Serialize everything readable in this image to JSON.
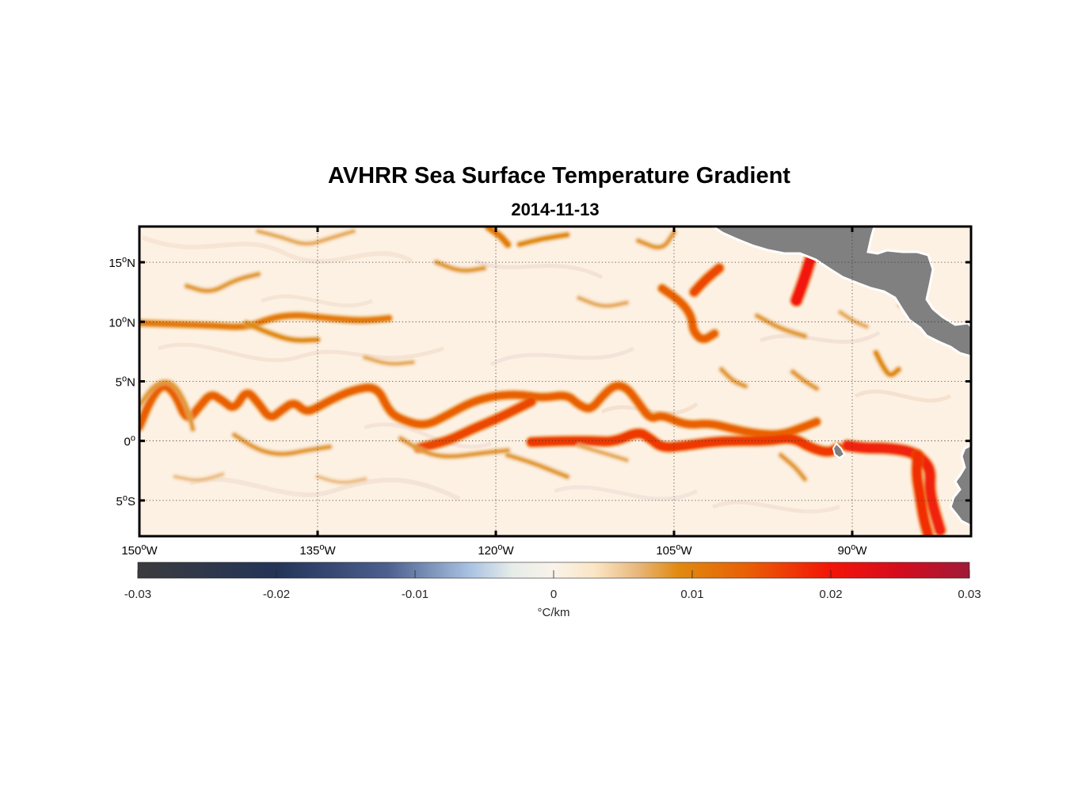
{
  "title": "AVHRR Sea Surface Temperature Gradient",
  "subtitle": "2014-11-13",
  "map": {
    "lon_range": [
      -150,
      -80
    ],
    "lat_range": [
      -8,
      18
    ],
    "lon_ticks": [
      {
        "value": -150,
        "deg": "150",
        "hemi": "W"
      },
      {
        "value": -135,
        "deg": "135",
        "hemi": "W"
      },
      {
        "value": -120,
        "deg": "120",
        "hemi": "W"
      },
      {
        "value": -105,
        "deg": "105",
        "hemi": "W"
      },
      {
        "value": -90,
        "deg": "90",
        "hemi": "W"
      }
    ],
    "lat_ticks": [
      {
        "value": 15,
        "deg": "15",
        "hemi": "N"
      },
      {
        "value": 10,
        "deg": "10",
        "hemi": "N"
      },
      {
        "value": 5,
        "deg": "5",
        "hemi": "N"
      },
      {
        "value": 0,
        "deg": "0",
        "hemi": ""
      },
      {
        "value": -5,
        "deg": "5",
        "hemi": "S"
      }
    ],
    "grid": true,
    "land_color": "#808080",
    "ocean_background": "#fdf1e3",
    "degree_symbol": "o"
  },
  "colorbar": {
    "range": [
      -0.03,
      0.03
    ],
    "ticks": [
      {
        "value": -0.03,
        "label": "-0.03"
      },
      {
        "value": -0.02,
        "label": "-0.02"
      },
      {
        "value": -0.01,
        "label": "-0.01"
      },
      {
        "value": 0,
        "label": "0"
      },
      {
        "value": 0.01,
        "label": "0.01"
      },
      {
        "value": 0.02,
        "label": "0.02"
      },
      {
        "value": 0.03,
        "label": "0.03"
      }
    ],
    "unit": "°C/km",
    "stops": [
      {
        "value": -0.03,
        "color": "#3b3b3d"
      },
      {
        "value": -0.02,
        "color": "#233458"
      },
      {
        "value": -0.012,
        "color": "#4c5f8e"
      },
      {
        "value": -0.006,
        "color": "#a9c3e3"
      },
      {
        "value": -0.003,
        "color": "#e6ece8"
      },
      {
        "value": 0,
        "color": "#f9f3ea"
      },
      {
        "value": 0.003,
        "color": "#fbe5c4"
      },
      {
        "value": 0.006,
        "color": "#e8b87e"
      },
      {
        "value": 0.009,
        "color": "#e08a10"
      },
      {
        "value": 0.014,
        "color": "#e95f05"
      },
      {
        "value": 0.02,
        "color": "#f31407"
      },
      {
        "value": 0.025,
        "color": "#d40c1e"
      },
      {
        "value": 0.03,
        "color": "#a01a38"
      }
    ]
  },
  "fronts": [
    {
      "id": "equatorial-front-main",
      "strength": 0.014,
      "points": [
        [
          -150,
          1.2
        ],
        [
          -149,
          3.6
        ],
        [
          -148,
          4.8
        ],
        [
          -147,
          4.0
        ],
        [
          -146,
          1.6
        ],
        [
          -145,
          2.8
        ],
        [
          -144,
          4.0
        ],
        [
          -143,
          3.4
        ],
        [
          -142,
          2.6
        ],
        [
          -141,
          4.3
        ],
        [
          -140,
          3.2
        ],
        [
          -139,
          1.8
        ],
        [
          -138,
          2.6
        ],
        [
          -137,
          3.3
        ],
        [
          -136,
          2.4
        ],
        [
          -135,
          2.8
        ],
        [
          -134,
          3.4
        ],
        [
          -132,
          4.3
        ],
        [
          -130,
          4.6
        ],
        [
          -129,
          2.5
        ],
        [
          -128,
          1.8
        ],
        [
          -126,
          1.2
        ],
        [
          -124,
          2.2
        ],
        [
          -122,
          3.3
        ],
        [
          -120,
          3.8
        ],
        [
          -118,
          3.9
        ],
        [
          -116,
          3.6
        ],
        [
          -114,
          3.9
        ],
        [
          -113,
          3.0
        ],
        [
          -112,
          2.6
        ],
        [
          -111,
          3.8
        ],
        [
          -110,
          4.7
        ],
        [
          -109,
          4.5
        ],
        [
          -108,
          3.2
        ],
        [
          -107,
          1.8
        ],
        [
          -106,
          2.2
        ],
        [
          -104,
          1.3
        ],
        [
          -102,
          1.5
        ],
        [
          -100,
          1.0
        ],
        [
          -98,
          0.6
        ],
        [
          -96,
          0.5
        ],
        [
          -94,
          1.2
        ],
        [
          -93,
          1.6
        ]
      ]
    },
    {
      "id": "cold-tongue-north-edge",
      "strength": 0.016,
      "points": [
        [
          -126.5,
          -0.6
        ],
        [
          -124,
          0.0
        ],
        [
          -122,
          1.0
        ],
        [
          -120,
          1.8
        ],
        [
          -118,
          2.8
        ],
        [
          -117,
          3.3
        ]
      ]
    },
    {
      "id": "cold-tongue-equator",
      "strength": 0.017,
      "points": [
        [
          -117,
          -0.1
        ],
        [
          -114,
          0.0
        ],
        [
          -112,
          0.0
        ],
        [
          -110,
          -0.1
        ],
        [
          -108,
          0.8
        ],
        [
          -107,
          0.2
        ],
        [
          -106,
          -0.6
        ],
        [
          -104,
          -0.4
        ],
        [
          -102,
          -0.1
        ],
        [
          -100,
          0.0
        ],
        [
          -97,
          0.0
        ],
        [
          -95,
          0.3
        ],
        [
          -93.5,
          -0.6
        ],
        [
          -92,
          -1.0
        ],
        [
          -91.2,
          -0.6
        ]
      ]
    },
    {
      "id": "galapagos-east",
      "strength": 0.019,
      "points": [
        [
          -90.4,
          -0.4
        ],
        [
          -89,
          -0.6
        ],
        [
          -87,
          -0.6
        ],
        [
          -85,
          -0.9
        ],
        [
          -84,
          -1.6
        ],
        [
          -83.4,
          -2.5
        ],
        [
          -83.5,
          -4.0
        ],
        [
          -83.2,
          -5.5
        ],
        [
          -82.6,
          -7.5
        ]
      ]
    },
    {
      "id": "peru-upwelling",
      "strength": 0.018,
      "points": [
        [
          -84.5,
          -1.2
        ],
        [
          -84.6,
          -2.8
        ],
        [
          -84.3,
          -4.6
        ],
        [
          -84.0,
          -6.5
        ],
        [
          -83.6,
          -7.9
        ]
      ]
    },
    {
      "id": "panama-jet",
      "strength": 0.02,
      "points": [
        [
          -94.7,
          11.8
        ],
        [
          -94.1,
          13.4
        ],
        [
          -93.6,
          15.0
        ],
        [
          -93.3,
          15.9
        ]
      ]
    },
    {
      "id": "papagayo-eddy",
      "strength": 0.014,
      "points": [
        [
          -106,
          12.8
        ],
        [
          -104.3,
          11.6
        ],
        [
          -103.5,
          10.4
        ],
        [
          -103.4,
          9.2
        ],
        [
          -102.6,
          8.4
        ],
        [
          -101.6,
          9.0
        ]
      ]
    },
    {
      "id": "papagayo-jet",
      "strength": 0.016,
      "points": [
        [
          -103.3,
          12.5
        ],
        [
          -102.3,
          13.6
        ],
        [
          -101.2,
          14.5
        ]
      ]
    },
    {
      "id": "itcz-front",
      "strength": 0.011,
      "points": [
        [
          -150,
          9.9
        ],
        [
          -147,
          9.8
        ],
        [
          -144,
          9.7
        ],
        [
          -141,
          9.5
        ],
        [
          -139,
          10.3
        ],
        [
          -137,
          10.6
        ],
        [
          -135,
          10.4
        ],
        [
          -133,
          10.2
        ],
        [
          -131,
          10.1
        ],
        [
          -129,
          10.3
        ]
      ]
    },
    {
      "id": "itcz-front-branch",
      "strength": 0.009,
      "points": [
        [
          -141,
          9.9
        ],
        [
          -139,
          9.0
        ],
        [
          -137,
          8.4
        ],
        [
          -135,
          8.5
        ]
      ]
    },
    {
      "id": "north-west-arc",
      "strength": 0.008,
      "points": [
        [
          -150,
          3.0
        ],
        [
          -148.6,
          4.9
        ],
        [
          -147.2,
          5.0
        ],
        [
          -146.0,
          3.0
        ],
        [
          -145.5,
          1.0
        ]
      ]
    },
    {
      "id": "south-west-wave",
      "strength": 0.008,
      "points": [
        [
          -142,
          0.5
        ],
        [
          -140,
          -0.8
        ],
        [
          -138,
          -1.2
        ],
        [
          -136,
          -0.8
        ],
        [
          -134,
          -0.5
        ]
      ]
    },
    {
      "id": "south-central-wave",
      "strength": 0.008,
      "points": [
        [
          -128,
          0.2
        ],
        [
          -126,
          -1.0
        ],
        [
          -124,
          -1.4
        ],
        [
          -121,
          -1.0
        ],
        [
          -119,
          -0.8
        ]
      ]
    },
    {
      "id": "south-tail",
      "strength": 0.008,
      "points": [
        [
          -119,
          -1.2
        ],
        [
          -117,
          -1.8
        ],
        [
          -115,
          -2.6
        ],
        [
          -114,
          -3.0
        ]
      ]
    },
    {
      "id": "south-tail-2",
      "strength": 0.007,
      "points": [
        [
          -113,
          -0.4
        ],
        [
          -111,
          -1.0
        ],
        [
          -109,
          -1.6
        ]
      ]
    },
    {
      "id": "north-top-1",
      "strength": 0.007,
      "points": [
        [
          -140,
          17.6
        ],
        [
          -138,
          17.1
        ],
        [
          -136,
          16.4
        ],
        [
          -134,
          17.0
        ],
        [
          -132,
          17.6
        ]
      ]
    },
    {
      "id": "north-top-2",
      "strength": 0.009,
      "points": [
        [
          -118,
          16.5
        ],
        [
          -116,
          17.0
        ],
        [
          -114,
          17.3
        ]
      ]
    },
    {
      "id": "north-top-3",
      "strength": 0.008,
      "points": [
        [
          -125,
          15.0
        ],
        [
          -123,
          14.2
        ],
        [
          -121,
          14.5
        ]
      ]
    },
    {
      "id": "north-top-4",
      "strength": 0.008,
      "points": [
        [
          -108,
          16.8
        ],
        [
          -106,
          16.0
        ],
        [
          -105,
          17.5
        ]
      ]
    },
    {
      "id": "north-top-5",
      "strength": 0.011,
      "points": [
        [
          -120.6,
          17.9
        ],
        [
          -119.6,
          17.2
        ],
        [
          -119.0,
          16.5
        ]
      ]
    },
    {
      "id": "mid-north-1",
      "strength": 0.008,
      "points": [
        [
          -146,
          13.0
        ],
        [
          -144,
          12.4
        ],
        [
          -142,
          13.5
        ],
        [
          -140,
          14.0
        ]
      ]
    },
    {
      "id": "mid-north-2",
      "strength": 0.007,
      "points": [
        [
          -113,
          12.0
        ],
        [
          -111,
          11.2
        ],
        [
          -109,
          11.6
        ]
      ]
    },
    {
      "id": "mid-north-3",
      "strength": 0.008,
      "points": [
        [
          -98,
          10.5
        ],
        [
          -96,
          9.4
        ],
        [
          -94,
          8.8
        ]
      ]
    },
    {
      "id": "mid-north-4",
      "strength": 0.007,
      "points": [
        [
          -131,
          7.0
        ],
        [
          -129,
          6.4
        ],
        [
          -127,
          6.6
        ]
      ]
    },
    {
      "id": "mid-east-1",
      "strength": 0.009,
      "points": [
        [
          -88,
          7.4
        ],
        [
          -87.4,
          6.2
        ],
        [
          -86.8,
          5.4
        ],
        [
          -86.1,
          6.0
        ]
      ]
    },
    {
      "id": "mid-east-2",
      "strength": 0.008,
      "points": [
        [
          -95,
          5.8
        ],
        [
          -94,
          5.0
        ],
        [
          -93,
          4.4
        ]
      ]
    },
    {
      "id": "mid-east-3",
      "strength": 0.008,
      "points": [
        [
          -101,
          6.0
        ],
        [
          -100,
          5.0
        ],
        [
          -99,
          4.6
        ]
      ]
    },
    {
      "id": "mid-east-4",
      "strength": 0.007,
      "points": [
        [
          -91,
          10.8
        ],
        [
          -89.8,
          10.0
        ],
        [
          -88.8,
          9.6
        ]
      ]
    },
    {
      "id": "mid-east-5",
      "strength": 0.007,
      "points": [
        [
          -86,
          11.4
        ],
        [
          -85,
          12.2
        ],
        [
          -84.2,
          13.0
        ]
      ]
    },
    {
      "id": "south-east-1",
      "strength": 0.008,
      "points": [
        [
          -96,
          -1.2
        ],
        [
          -94.8,
          -2.2
        ],
        [
          -94,
          -3.2
        ]
      ]
    },
    {
      "id": "south-west-2",
      "strength": 0.006,
      "points": [
        [
          -147,
          -3.0
        ],
        [
          -145,
          -3.4
        ],
        [
          -143,
          -2.8
        ]
      ]
    },
    {
      "id": "south-west-3",
      "strength": 0.006,
      "points": [
        [
          -135,
          -3.0
        ],
        [
          -133,
          -3.6
        ],
        [
          -131,
          -3.2
        ]
      ]
    }
  ]
}
